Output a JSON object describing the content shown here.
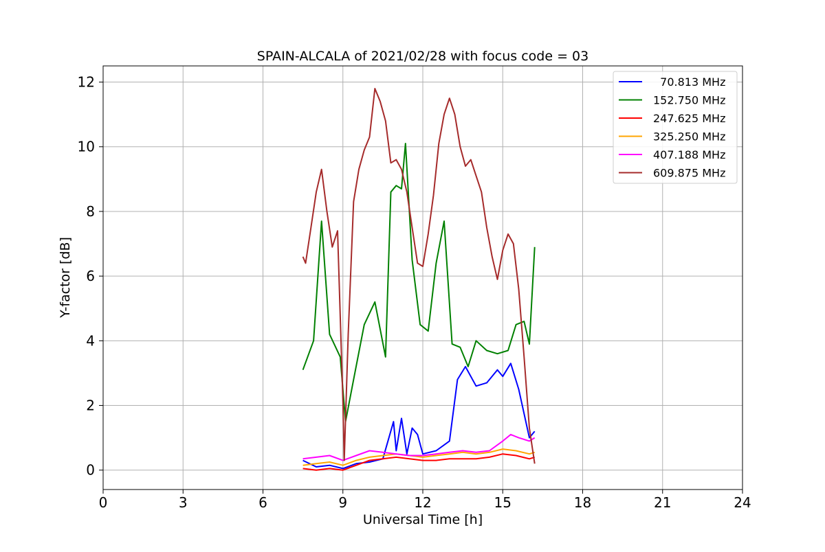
{
  "chart_data": {
    "type": "line",
    "title": "SPAIN-ALCALA of 2021/02/28 with focus code = 03",
    "xlabel": "Universal Time [h]",
    "ylabel": "Y-factor [dB]",
    "xlim": [
      0,
      24
    ],
    "ylim": [
      -0.6,
      12.5
    ],
    "xticks": [
      0,
      3,
      6,
      9,
      12,
      15,
      18,
      21,
      24
    ],
    "yticks": [
      0,
      2,
      4,
      6,
      8,
      10,
      12
    ],
    "xtick_labels": [
      "0",
      "3",
      "6",
      "9",
      "12",
      "15",
      "18",
      "21",
      "24"
    ],
    "ytick_labels": [
      "0",
      "2",
      "4",
      "6",
      "8",
      "10",
      "12"
    ],
    "grid": true,
    "legend_position": "top-right",
    "series": [
      {
        "name": "  70.813 MHz",
        "color": "#0000ff",
        "x": [
          7.5,
          8.0,
          8.5,
          9.0,
          9.5,
          10.0,
          10.5,
          10.9,
          11.0,
          11.2,
          11.4,
          11.6,
          11.8,
          12.0,
          12.5,
          13.0,
          13.3,
          13.6,
          14.0,
          14.4,
          14.8,
          15.0,
          15.3,
          15.6,
          16.0,
          16.2
        ],
        "y": [
          0.3,
          0.1,
          0.15,
          0.05,
          0.2,
          0.25,
          0.35,
          1.5,
          0.6,
          1.6,
          0.5,
          1.3,
          1.1,
          0.5,
          0.6,
          0.9,
          2.8,
          3.2,
          2.6,
          2.7,
          3.1,
          2.9,
          3.3,
          2.5,
          1.0,
          1.2
        ]
      },
      {
        "name": "152.750 MHz",
        "color": "#008000",
        "x": [
          7.5,
          7.9,
          8.2,
          8.5,
          8.9,
          9.1,
          9.4,
          9.8,
          10.2,
          10.6,
          10.8,
          11.0,
          11.2,
          11.35,
          11.6,
          11.9,
          12.2,
          12.5,
          12.8,
          13.1,
          13.4,
          13.7,
          14.0,
          14.4,
          14.8,
          15.2,
          15.5,
          15.8,
          16.0,
          16.2
        ],
        "y": [
          3.1,
          4.0,
          7.7,
          4.2,
          3.5,
          1.5,
          2.8,
          4.5,
          5.2,
          3.5,
          8.6,
          8.8,
          8.7,
          10.1,
          6.5,
          4.5,
          4.3,
          6.4,
          7.7,
          3.9,
          3.8,
          3.2,
          4.0,
          3.7,
          3.6,
          3.7,
          4.5,
          4.6,
          3.9,
          6.9
        ]
      },
      {
        "name": "247.625 MHz",
        "color": "#ff0000",
        "x": [
          7.5,
          8.0,
          8.5,
          9.0,
          9.5,
          10.0,
          10.5,
          11.0,
          11.5,
          12.0,
          12.5,
          13.0,
          13.5,
          14.0,
          14.5,
          15.0,
          15.5,
          16.0,
          16.2
        ],
        "y": [
          0.05,
          0.0,
          0.05,
          0.0,
          0.15,
          0.3,
          0.35,
          0.4,
          0.35,
          0.3,
          0.3,
          0.35,
          0.35,
          0.35,
          0.4,
          0.5,
          0.45,
          0.35,
          0.4
        ]
      },
      {
        "name": "325.250 MHz",
        "color": "#ffa500",
        "x": [
          7.5,
          8.0,
          8.5,
          9.0,
          9.5,
          10.0,
          10.5,
          11.0,
          11.5,
          12.0,
          12.5,
          13.0,
          13.5,
          14.0,
          14.5,
          15.0,
          15.5,
          16.0,
          16.2
        ],
        "y": [
          0.15,
          0.2,
          0.25,
          0.15,
          0.3,
          0.4,
          0.45,
          0.5,
          0.45,
          0.4,
          0.45,
          0.5,
          0.55,
          0.5,
          0.55,
          0.65,
          0.6,
          0.5,
          0.55
        ]
      },
      {
        "name": "407.188 MHz",
        "color": "#ff00ff",
        "x": [
          7.5,
          8.0,
          8.5,
          9.0,
          9.5,
          10.0,
          10.5,
          11.0,
          11.5,
          12.0,
          12.5,
          13.0,
          13.5,
          14.0,
          14.5,
          15.0,
          15.3,
          15.6,
          16.0,
          16.2
        ],
        "y": [
          0.35,
          0.4,
          0.45,
          0.3,
          0.45,
          0.6,
          0.55,
          0.5,
          0.45,
          0.45,
          0.5,
          0.55,
          0.6,
          0.55,
          0.6,
          0.9,
          1.1,
          1.0,
          0.9,
          1.0
        ]
      },
      {
        "name": "609.875 MHz",
        "color": "#a52a2a",
        "x": [
          7.5,
          7.6,
          7.8,
          8.0,
          8.2,
          8.4,
          8.6,
          8.8,
          9.0,
          9.05,
          9.2,
          9.4,
          9.6,
          9.8,
          10.0,
          10.2,
          10.4,
          10.6,
          10.8,
          11.0,
          11.2,
          11.4,
          11.6,
          11.8,
          12.0,
          12.2,
          12.4,
          12.6,
          12.8,
          13.0,
          13.2,
          13.4,
          13.6,
          13.8,
          14.0,
          14.2,
          14.4,
          14.6,
          14.8,
          15.0,
          15.2,
          15.4,
          15.6,
          15.8,
          16.0,
          16.2
        ],
        "y": [
          6.6,
          6.4,
          7.5,
          8.6,
          9.3,
          8.0,
          6.9,
          7.4,
          2.1,
          0.3,
          4.2,
          8.3,
          9.3,
          9.9,
          10.3,
          11.8,
          11.4,
          10.8,
          9.5,
          9.6,
          9.3,
          8.6,
          7.5,
          6.4,
          6.3,
          7.3,
          8.5,
          10.1,
          11.0,
          11.5,
          11.0,
          10.0,
          9.4,
          9.6,
          9.1,
          8.6,
          7.5,
          6.6,
          5.9,
          6.8,
          7.3,
          7.0,
          5.6,
          3.5,
          1.3,
          0.2
        ]
      }
    ]
  }
}
